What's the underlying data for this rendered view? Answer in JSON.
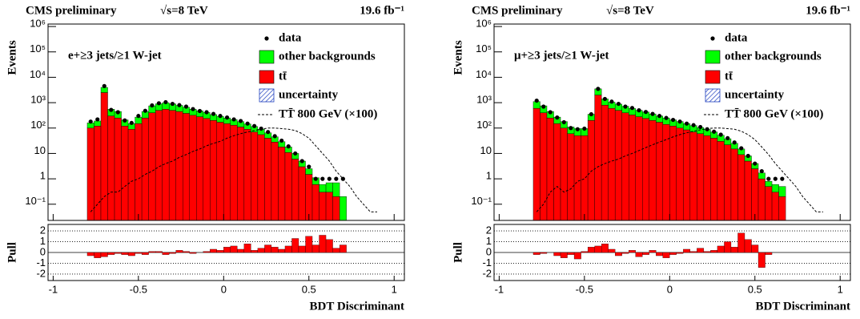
{
  "chart_data": [
    {
      "type": "histogram",
      "header": [
        "CMS preliminary",
        "√s=8 TeV",
        "19.6 fb⁻¹"
      ],
      "annotation": "e+≥3 jets/≥1 W-jet",
      "ylabel": "Events",
      "xlabel": "BDT Discriminant",
      "log_y": true,
      "xlim": [
        -1.03,
        1.06
      ],
      "xticks": [
        -1,
        -0.5,
        0,
        0.5,
        1
      ],
      "ylim": [
        0.023,
        1250000
      ],
      "yticks": [
        {
          "value": 0.1,
          "label": "10⁻¹"
        },
        1,
        10,
        {
          "value": 100,
          "label": "10²"
        },
        {
          "value": 1000,
          "label": "10³"
        },
        {
          "value": 10000,
          "label": "10⁴"
        },
        {
          "value": 100000,
          "label": "10⁵"
        },
        {
          "value": 1000000,
          "label": "10⁶"
        }
      ],
      "bins": [
        -0.8,
        -0.76,
        -0.72,
        -0.68,
        -0.64,
        -0.6,
        -0.56,
        -0.52,
        -0.48,
        -0.44,
        -0.4,
        -0.36,
        -0.32,
        -0.28,
        -0.24,
        -0.2,
        -0.16,
        -0.12,
        -0.08,
        -0.04,
        0,
        0.04,
        0.08,
        0.12,
        0.16,
        0.2,
        0.24,
        0.28,
        0.32,
        0.36,
        0.4,
        0.44,
        0.48,
        0.52,
        0.56,
        0.6,
        0.64,
        0.68,
        0.72,
        0.76,
        0.8,
        0.84,
        0.88,
        0.92
      ],
      "data": {
        "name": "data",
        "color": "#000000",
        "values": [
          180,
          220,
          4500,
          520,
          420,
          200,
          160,
          300,
          480,
          780,
          950,
          1050,
          900,
          800,
          700,
          560,
          470,
          420,
          360,
          300,
          260,
          220,
          190,
          150,
          120,
          95,
          70,
          48,
          32,
          19,
          10,
          5,
          3,
          1,
          1,
          1,
          1,
          1,
          null,
          null,
          null,
          null,
          null
        ]
      },
      "stack": [
        {
          "name": "tt̄",
          "color": "#ff0000",
          "values": [
            100,
            120,
            2500,
            300,
            250,
            120,
            90,
            150,
            250,
            400,
            500,
            550,
            500,
            450,
            380,
            320,
            280,
            240,
            200,
            170,
            150,
            130,
            110,
            90,
            70,
            55,
            40,
            28,
            18,
            11,
            6,
            3,
            1.5,
            0.6,
            0.3,
            0.3,
            0.2,
            0,
            0,
            0,
            0,
            0,
            0
          ]
        },
        {
          "name": "other backgrounds",
          "color": "#00ff00",
          "values": [
            60,
            70,
            1500,
            250,
            200,
            90,
            60,
            120,
            200,
            350,
            400,
            450,
            400,
            330,
            280,
            230,
            200,
            170,
            140,
            120,
            100,
            85,
            70,
            55,
            45,
            35,
            25,
            17,
            11,
            7,
            4,
            2,
            1,
            0.5,
            0.3,
            0.4,
            0.5,
            0.2,
            0,
            0,
            0,
            0,
            0
          ]
        }
      ],
      "uncertainty": {
        "name": "uncertainty",
        "color": "#1f3fbf"
      },
      "signal": {
        "name": "TT̄ 800 GeV (×100)",
        "color": "#000000",
        "values": [
          0.05,
          0.1,
          0.2,
          0.3,
          0.3,
          0.5,
          0.8,
          1,
          1.5,
          2,
          3,
          4,
          5,
          7,
          9,
          12,
          15,
          20,
          25,
          30,
          40,
          50,
          60,
          70,
          80,
          90,
          100,
          100,
          95,
          90,
          80,
          60,
          40,
          20,
          10,
          5,
          2,
          1,
          0.5,
          0.2,
          0.1,
          0.05,
          0.05
        ]
      },
      "pull": {
        "ylabel": "Pull",
        "color": "#ff0000",
        "ylim": [
          -2.6,
          2.6
        ],
        "yticks": [
          -2,
          -1,
          0,
          1,
          2
        ],
        "values": [
          -0.3,
          -0.5,
          -0.4,
          -0.2,
          -0.1,
          -0.2,
          -0.3,
          -0.1,
          -0.2,
          0.1,
          0.1,
          -0.2,
          -0.1,
          0.2,
          0.1,
          -0.1,
          0,
          0.1,
          0.3,
          0.2,
          0.5,
          0.6,
          0.3,
          0.8,
          0.2,
          0.4,
          0.7,
          0.5,
          0.3,
          0.6,
          1.3,
          0.6,
          1.5,
          0.7,
          1.6,
          1.2,
          0.4,
          0.7,
          0,
          0,
          0,
          0,
          0
        ]
      }
    },
    {
      "type": "histogram",
      "header": [
        "CMS preliminary",
        "√s=8 TeV",
        "19.6 fb⁻¹"
      ],
      "annotation": "μ+≥3 jets/≥1 W-jet",
      "ylabel": "Events",
      "xlabel": "BDT Discriminant",
      "log_y": true,
      "xlim": [
        -1.03,
        1.06
      ],
      "xticks": [
        -1,
        -0.5,
        0,
        0.5,
        1
      ],
      "ylim": [
        0.023,
        1250000
      ],
      "yticks": [
        {
          "value": 0.1,
          "label": "10⁻¹"
        },
        1,
        10,
        {
          "value": 100,
          "label": "10²"
        },
        {
          "value": 1000,
          "label": "10³"
        },
        {
          "value": 10000,
          "label": "10⁴"
        },
        {
          "value": 100000,
          "label": "10⁵"
        },
        {
          "value": 1000000,
          "label": "10⁶"
        }
      ],
      "bins": [
        -0.8,
        -0.76,
        -0.72,
        -0.68,
        -0.64,
        -0.6,
        -0.56,
        -0.52,
        -0.48,
        -0.44,
        -0.4,
        -0.36,
        -0.32,
        -0.28,
        -0.24,
        -0.2,
        -0.16,
        -0.12,
        -0.08,
        -0.04,
        0,
        0.04,
        0.08,
        0.12,
        0.16,
        0.2,
        0.24,
        0.28,
        0.32,
        0.36,
        0.4,
        0.44,
        0.48,
        0.52,
        0.56,
        0.6,
        0.64,
        0.68,
        0.72,
        0.76,
        0.8,
        0.84,
        0.88,
        0.92
      ],
      "data": {
        "name": "data",
        "color": "#000000",
        "values": [
          1200,
          700,
          420,
          260,
          170,
          100,
          90,
          95,
          350,
          3500,
          1400,
          1100,
          900,
          700,
          620,
          500,
          430,
          360,
          300,
          250,
          210,
          180,
          150,
          130,
          110,
          90,
          72,
          55,
          40,
          27,
          16,
          8,
          4,
          2,
          1,
          1,
          1,
          null,
          null,
          null,
          null,
          null,
          null
        ]
      },
      "stack": [
        {
          "name": "tt̄",
          "color": "#ff0000",
          "values": [
            600,
            400,
            250,
            150,
            100,
            60,
            50,
            50,
            200,
            2000,
            800,
            600,
            500,
            400,
            330,
            280,
            240,
            200,
            170,
            140,
            120,
            100,
            85,
            70,
            60,
            50,
            40,
            30,
            22,
            15,
            9,
            5,
            2.5,
            1,
            0.5,
            0.3,
            0.2,
            0,
            0,
            0,
            0,
            0,
            0
          ]
        },
        {
          "name": "other backgrounds",
          "color": "#00ff00",
          "values": [
            500,
            350,
            200,
            120,
            80,
            50,
            45,
            45,
            150,
            1500,
            600,
            450,
            380,
            320,
            260,
            220,
            190,
            160,
            130,
            110,
            90,
            80,
            65,
            55,
            45,
            38,
            30,
            22,
            16,
            10,
            6,
            3,
            1.5,
            0.7,
            0.3,
            0.3,
            0.3,
            0,
            0,
            0,
            0,
            0,
            0
          ]
        }
      ],
      "uncertainty": {
        "name": "uncertainty",
        "color": "#1f3fbf"
      },
      "signal": {
        "name": "TT̄ 800 GeV (×100)",
        "color": "#000000",
        "values": [
          0.05,
          0.1,
          0.3,
          0.5,
          0.3,
          0.4,
          0.8,
          1,
          2,
          3,
          4,
          5,
          6,
          8,
          10,
          13,
          17,
          22,
          28,
          35,
          45,
          55,
          65,
          75,
          85,
          95,
          100,
          100,
          95,
          90,
          75,
          55,
          35,
          18,
          9,
          4,
          2,
          1,
          0.5,
          0.2,
          0.1,
          0.05,
          0.05
        ]
      },
      "pull": {
        "ylabel": "Pull",
        "color": "#ff0000",
        "ylim": [
          -2.6,
          2.6
        ],
        "yticks": [
          -2,
          -1,
          0,
          1,
          2
        ],
        "values": [
          -0.2,
          -0.1,
          0,
          -0.3,
          -0.5,
          -0.2,
          -0.6,
          0.1,
          0.5,
          0.6,
          0.8,
          0.3,
          -0.3,
          -0.1,
          0.2,
          -0.4,
          -0.2,
          0.2,
          -0.3,
          -0.5,
          -0.2,
          -0.1,
          0.3,
          0.1,
          0.4,
          0.1,
          0.2,
          0.6,
          1.0,
          0.5,
          1.8,
          1.2,
          0.7,
          -1.4,
          -0.2,
          0,
          0,
          0,
          0,
          0,
          0,
          0,
          0
        ]
      }
    }
  ]
}
